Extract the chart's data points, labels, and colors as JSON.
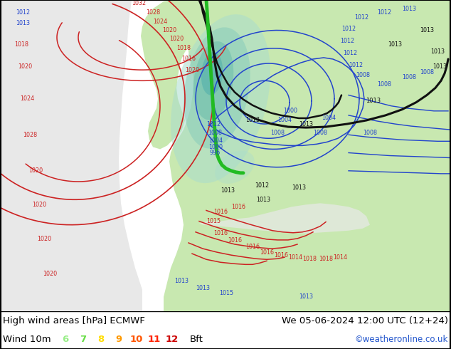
{
  "title_left": "High wind areas [hPa] ECMWF",
  "title_right": "We 05-06-2024 12:00 UTC (12+24)",
  "subtitle_left": "Wind 10m",
  "subtitle_right": "©weatheronline.co.uk",
  "legend_numbers": [
    "6",
    "7",
    "8",
    "9",
    "10",
    "11",
    "12"
  ],
  "legend_colors": [
    "#99ee88",
    "#66dd44",
    "#ffdd00",
    "#ff9900",
    "#ff5500",
    "#ff2200",
    "#cc0000"
  ],
  "legend_suffix": "Bft",
  "bottom_bar_bg": "#ffffff",
  "fig_width": 6.34,
  "fig_height": 4.9,
  "dpi": 100,
  "map_ocean_color": "#e8e8e8",
  "map_land_color": "#c8e8b0",
  "map_land_alt": "#d8f0b8",
  "high_wind_cyan": "#aaddcc",
  "high_wind_green": "#88cc99",
  "isobar_red_color": "#cc2222",
  "isobar_blue_color": "#2244cc",
  "isobar_black_color": "#111111",
  "caption_font_size": 9.5,
  "label_font_size": 5.8
}
